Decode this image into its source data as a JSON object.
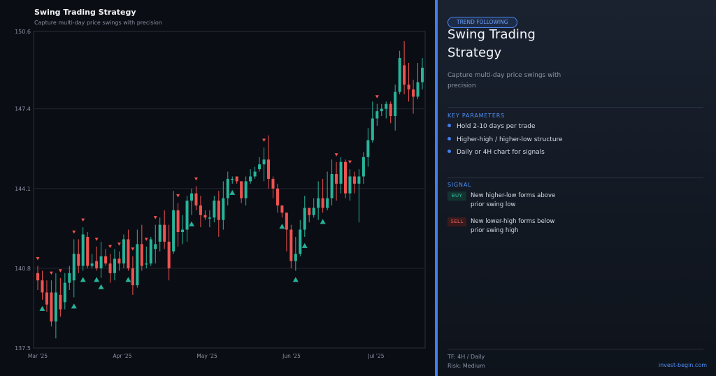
{
  "chart_data": {
    "type": "candlestick",
    "title": "Swing Trading Strategy",
    "subtitle": "Capture multi-day price swings with precision",
    "y_ticks": [
      137.5,
      140.8,
      144.1,
      147.4,
      150.6
    ],
    "ylim": [
      137.5,
      150.6
    ],
    "x_ticks": [
      "Mar '25",
      "Apr '25",
      "May '25",
      "Jun '25",
      "Jul '25"
    ],
    "x_tick_index": [
      0,
      18.7,
      37.4,
      56.1,
      74.8
    ],
    "grid": true,
    "candles": [
      [
        140.6,
        140.3,
        140.9,
        139.9
      ],
      [
        140.3,
        139.8,
        140.7,
        139.5
      ],
      [
        139.8,
        139.3,
        140.3,
        139.0
      ],
      [
        139.8,
        138.6,
        140.3,
        138.4
      ],
      [
        138.6,
        139.8,
        140.6,
        137.9
      ],
      [
        139.7,
        139.1,
        140.4,
        138.8
      ],
      [
        139.4,
        140.2,
        140.6,
        139.1
      ],
      [
        140.2,
        140.6,
        140.9,
        139.9
      ],
      [
        140.3,
        141.4,
        142.0,
        139.6
      ],
      [
        141.4,
        140.9,
        142.0,
        140.6
      ],
      [
        140.9,
        142.2,
        142.5,
        140.7
      ],
      [
        142.1,
        140.9,
        142.3,
        140.8
      ],
      [
        140.9,
        141.0,
        141.4,
        140.8
      ],
      [
        141.1,
        140.8,
        141.7,
        140.7
      ],
      [
        140.8,
        141.3,
        141.9,
        140.4
      ],
      [
        141.3,
        141.0,
        141.6,
        140.9
      ],
      [
        141.0,
        140.6,
        141.4,
        140.2
      ],
      [
        140.6,
        141.2,
        141.6,
        140.3
      ],
      [
        141.2,
        141.0,
        141.5,
        140.7
      ],
      [
        141.0,
        142.0,
        142.2,
        140.8
      ],
      [
        142.0,
        140.8,
        142.4,
        140.7
      ],
      [
        140.8,
        140.1,
        141.3,
        139.7
      ],
      [
        140.1,
        141.8,
        142.4,
        140.0
      ],
      [
        141.8,
        140.9,
        142.6,
        140.7
      ],
      [
        141.0,
        141.0,
        141.7,
        140.8
      ],
      [
        141.0,
        142.0,
        142.1,
        140.9
      ],
      [
        141.6,
        141.8,
        142.6,
        141.0
      ],
      [
        141.9,
        142.6,
        142.9,
        141.5
      ],
      [
        142.6,
        141.9,
        143.2,
        141.6
      ],
      [
        141.9,
        140.8,
        142.6,
        140.3
      ],
      [
        141.5,
        143.2,
        144.0,
        141.4
      ],
      [
        143.2,
        142.3,
        143.5,
        141.7
      ],
      [
        142.3,
        142.4,
        143.0,
        141.8
      ],
      [
        142.4,
        143.6,
        143.8,
        141.9
      ],
      [
        143.6,
        143.9,
        144.1,
        143.0
      ],
      [
        143.9,
        143.4,
        144.2,
        143.2
      ],
      [
        143.4,
        143.0,
        143.8,
        142.5
      ],
      [
        143.0,
        142.9,
        143.2,
        142.8
      ],
      [
        142.9,
        142.9,
        143.2,
        142.5
      ],
      [
        142.9,
        143.6,
        143.8,
        142.7
      ],
      [
        143.6,
        142.8,
        144.0,
        142.1
      ],
      [
        142.8,
        143.7,
        144.4,
        142.4
      ],
      [
        143.7,
        144.5,
        144.8,
        143.4
      ],
      [
        144.5,
        144.5,
        144.6,
        144.3
      ],
      [
        144.6,
        144.4,
        144.6,
        144.3
      ],
      [
        144.4,
        143.7,
        144.4,
        143.5
      ],
      [
        143.7,
        144.4,
        144.6,
        143.4
      ],
      [
        144.4,
        144.6,
        144.9,
        144.3
      ],
      [
        144.6,
        144.8,
        145.0,
        144.5
      ],
      [
        144.9,
        145.1,
        145.4,
        144.8
      ],
      [
        145.1,
        145.3,
        145.8,
        144.4
      ],
      [
        145.3,
        144.5,
        146.3,
        144.1
      ],
      [
        144.5,
        144.1,
        144.6,
        143.7
      ],
      [
        144.1,
        143.4,
        144.3,
        143.1
      ],
      [
        143.4,
        143.1,
        143.3,
        142.9
      ],
      [
        143.1,
        142.4,
        143.1,
        141.5
      ],
      [
        142.4,
        141.1,
        142.6,
        140.8
      ],
      [
        141.1,
        141.4,
        142.1,
        140.7
      ],
      [
        141.4,
        142.4,
        142.8,
        141.3
      ],
      [
        142.4,
        143.3,
        143.8,
        142.1
      ],
      [
        143.3,
        143.0,
        143.3,
        142.7
      ],
      [
        143.0,
        143.3,
        143.7,
        142.9
      ],
      [
        143.3,
        143.7,
        144.4,
        142.8
      ],
      [
        143.7,
        143.3,
        144.5,
        143.1
      ],
      [
        143.3,
        143.7,
        144.8,
        143.2
      ],
      [
        143.7,
        144.7,
        145.3,
        143.4
      ],
      [
        144.7,
        144.3,
        145.2,
        143.6
      ],
      [
        144.3,
        145.2,
        145.4,
        143.9
      ],
      [
        145.2,
        143.9,
        145.3,
        143.7
      ],
      [
        143.9,
        144.6,
        144.9,
        143.6
      ],
      [
        144.6,
        144.3,
        144.8,
        143.9
      ],
      [
        144.3,
        144.6,
        144.9,
        142.7
      ],
      [
        144.6,
        145.4,
        145.6,
        144.3
      ],
      [
        145.4,
        146.1,
        146.6,
        145.0
      ],
      [
        146.1,
        147.0,
        147.7,
        146.0
      ],
      [
        147.0,
        147.3,
        147.6,
        146.7
      ],
      [
        147.3,
        147.4,
        147.6,
        147.1
      ],
      [
        147.4,
        147.6,
        147.7,
        147.0
      ],
      [
        147.6,
        147.1,
        147.7,
        146.8
      ],
      [
        147.1,
        148.1,
        148.4,
        146.5
      ],
      [
        148.1,
        149.5,
        149.8,
        148.0
      ],
      [
        149.2,
        148.4,
        150.2,
        148.0
      ],
      [
        148.4,
        148.2,
        149.3,
        147.7
      ],
      [
        148.2,
        147.9,
        148.6,
        147.2
      ],
      [
        147.9,
        148.5,
        149.3,
        147.8
      ],
      [
        148.5,
        149.1,
        149.5,
        148.2
      ]
    ],
    "buy_signals": [
      1,
      8,
      10,
      13,
      14,
      20,
      34,
      43,
      54,
      57,
      59,
      63
    ],
    "sell_signals": [
      0,
      3,
      5,
      8,
      10,
      13,
      16,
      18,
      21,
      24,
      26,
      31,
      35,
      50,
      66,
      69,
      75
    ]
  },
  "panel": {
    "tag": "TREND FOLLOWING",
    "title": "Swing Trading Strategy",
    "description": "Capture multi-day price swings with precision",
    "params_label": "KEY PARAMETERS",
    "params": [
      "Hold 2-10 days per trade",
      "Higher-high / higher-low structure",
      "Daily or 4H chart for signals"
    ],
    "signal_label": "SIGNAL",
    "buy_label": "BUY",
    "buy_text": "New higher-low forms above prior swing low",
    "sell_label": "SELL",
    "sell_text": "New lower-high forms below prior swing high",
    "timeframe": "TF: 4H / Daily",
    "risk": "Risk: Medium",
    "site": "invest-begin.com"
  },
  "colors": {
    "up": "#27b49a",
    "down": "#ef5350",
    "accent": "#3f7ff0",
    "grid": "#20242f"
  }
}
